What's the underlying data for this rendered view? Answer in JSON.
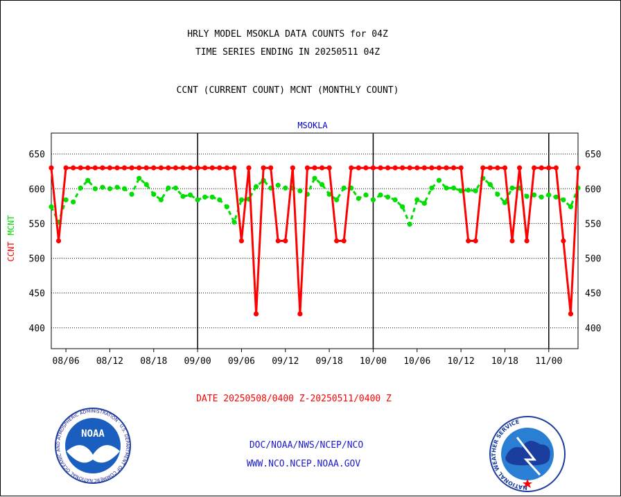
{
  "header": {
    "line1": "HRLY MODEL MSOKLA DATA COUNTS for 04Z",
    "line2": "TIME SERIES ENDING IN 20250511 04Z",
    "line3": "CCNT (CURRENT COUNT) MCNT (MONTHLY COUNT)"
  },
  "footer": {
    "date_range": "DATE 20250508/0400 Z-20250511/0400 Z",
    "org_path": "DOC/NOAA/NWS/NCEP/NCO",
    "website": "WWW.NCO.NCEP.NOAA.GOV"
  },
  "logos": {
    "noaa_text": "NOAA",
    "noaa_ring_text": "NATIONAL OCEANIC AND ATMOSPHERIC ADMINISTRATION · U.S. DEPARTMENT OF COMMERCE",
    "nws_ring_text": "NATIONAL WEATHER SERVICE"
  },
  "colors": {
    "ccnt": "#ff0000",
    "mcnt": "#00dd00",
    "title": "#0000cc",
    "axis": "#000000"
  },
  "chart_data": {
    "type": "line",
    "title": "MSOKLA",
    "ylabel_left_1": "CCNT",
    "ylabel_left_2": "MCNT",
    "xlabel": "",
    "ylim": [
      370,
      680
    ],
    "yticks": [
      400,
      450,
      500,
      550,
      600,
      650
    ],
    "grid": true,
    "x_ticks": [
      {
        "label": "08/06",
        "x": 6
      },
      {
        "label": "08/12",
        "x": 12
      },
      {
        "label": "08/18",
        "x": 18
      },
      {
        "label": "09/00",
        "x": 24
      },
      {
        "label": "09/06",
        "x": 30
      },
      {
        "label": "09/12",
        "x": 36
      },
      {
        "label": "09/18",
        "x": 42
      },
      {
        "label": "10/00",
        "x": 48
      },
      {
        "label": "10/06",
        "x": 54
      },
      {
        "label": "10/12",
        "x": 60
      },
      {
        "label": "10/18",
        "x": 66
      },
      {
        "label": "11/00",
        "x": 72
      }
    ],
    "day_boundaries": [
      24,
      48,
      72
    ],
    "xlim": [
      4,
      76
    ],
    "series": [
      {
        "name": "CCNT",
        "style": "solid",
        "x": [
          4,
          5,
          6,
          7,
          8,
          9,
          10,
          11,
          12,
          13,
          14,
          15,
          16,
          17,
          18,
          19,
          20,
          21,
          22,
          23,
          24,
          25,
          26,
          27,
          28,
          29,
          30,
          31,
          32,
          33,
          34,
          35,
          36,
          37,
          38,
          39,
          40,
          41,
          42,
          43,
          44,
          45,
          46,
          47,
          48,
          49,
          50,
          51,
          52,
          53,
          54,
          55,
          56,
          57,
          58,
          59,
          60,
          61,
          62,
          63,
          64,
          65,
          66,
          67,
          68,
          69,
          70,
          71,
          72,
          73,
          74,
          75,
          76
        ],
        "values": [
          630,
          525,
          630,
          630,
          630,
          630,
          630,
          630,
          630,
          630,
          630,
          630,
          630,
          630,
          630,
          630,
          630,
          630,
          630,
          630,
          630,
          630,
          630,
          630,
          630,
          630,
          525,
          630,
          420,
          630,
          630,
          525,
          525,
          630,
          420,
          630,
          630,
          630,
          630,
          525,
          525,
          630,
          630,
          630,
          630,
          630,
          630,
          630,
          630,
          630,
          630,
          630,
          630,
          630,
          630,
          630,
          630,
          525,
          525,
          630,
          630,
          630,
          630,
          525,
          630,
          525,
          630,
          630,
          630,
          630,
          525,
          420,
          630
        ]
      },
      {
        "name": "MCNT",
        "style": "dashed",
        "x": [
          4,
          5,
          6,
          7,
          8,
          9,
          10,
          11,
          12,
          13,
          14,
          15,
          16,
          17,
          18,
          19,
          20,
          21,
          22,
          23,
          24,
          25,
          26,
          27,
          28,
          29,
          30,
          31,
          32,
          33,
          34,
          35,
          36,
          37,
          38,
          39,
          40,
          41,
          42,
          43,
          44,
          45,
          46,
          47,
          48,
          49,
          50,
          51,
          52,
          53,
          54,
          55,
          56,
          57,
          58,
          59,
          60,
          61,
          62,
          63,
          64,
          65,
          66,
          67,
          68,
          69,
          70,
          71,
          72,
          73,
          74,
          75,
          76
        ],
        "values": [
          574,
          552,
          584,
          581,
          601,
          612,
          600,
          602,
          600,
          602,
          600,
          592,
          615,
          606,
          592,
          584,
          601,
          601,
          589,
          591,
          584,
          588,
          588,
          584,
          574,
          552,
          584,
          585,
          603,
          612,
          601,
          605,
          601,
          601,
          597,
          592,
          615,
          606,
          592,
          584,
          601,
          601,
          586,
          591,
          584,
          591,
          588,
          584,
          574,
          549,
          584,
          579,
          601,
          612,
          601,
          601,
          597,
          598,
          597,
          615,
          606,
          592,
          580,
          601,
          601,
          589,
          591,
          588,
          591,
          588,
          584,
          574,
          601
        ]
      }
    ]
  }
}
